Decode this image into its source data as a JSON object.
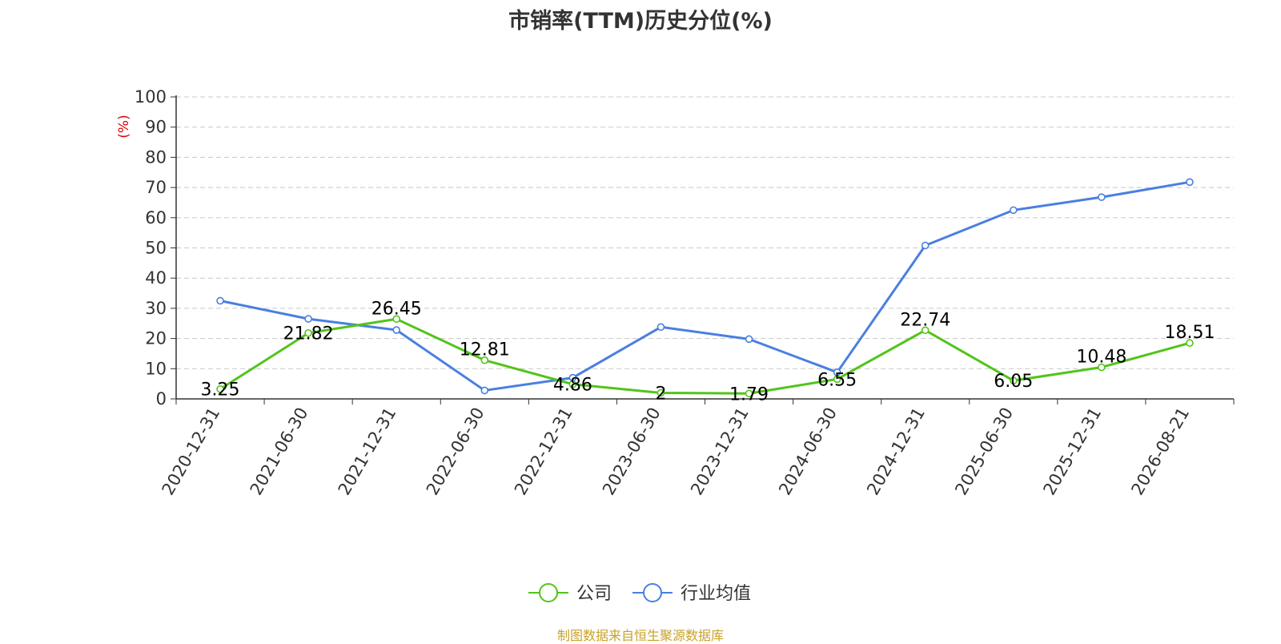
{
  "title": "市销率(TTM)历史分位(%)",
  "source": "制图数据来自恒生聚源数据库",
  "chart_data": {
    "type": "line",
    "title": "市销率(TTM)历史分位(%)",
    "ylabel": "(%)",
    "xlabel": "",
    "ylim": [
      0,
      100
    ],
    "yticks": [
      "0",
      "10",
      "20",
      "30",
      "40",
      "50",
      "60",
      "70",
      "80",
      "90",
      "100"
    ],
    "grid": true,
    "legend_position": "bottom",
    "categories": [
      "2020-12-31",
      "2021-06-30",
      "2021-12-31",
      "2022-06-30",
      "2022-12-31",
      "2023-06-30",
      "2023-12-31",
      "2024-06-30",
      "2024-12-31",
      "2025-06-30",
      "2025-12-31",
      "2026-08-21"
    ],
    "series": [
      {
        "name": "公司",
        "color": "#52c41a",
        "values": [
          3.25,
          21.82,
          26.45,
          12.81,
          4.86,
          2,
          1.79,
          6.55,
          22.74,
          6.05,
          10.48,
          18.51
        ],
        "labels": [
          "3.25",
          "21.82",
          "26.45",
          "12.81",
          "4.86",
          "2",
          "1.79",
          "6.55",
          "22.74",
          "6.05",
          "10.48",
          "18.51"
        ]
      },
      {
        "name": "行业均值",
        "color": "#4a7fe0",
        "values": [
          32.5,
          26.5,
          22.8,
          2.8,
          7.0,
          23.8,
          19.8,
          8.8,
          50.8,
          62.5,
          66.8,
          71.8
        ]
      }
    ]
  }
}
